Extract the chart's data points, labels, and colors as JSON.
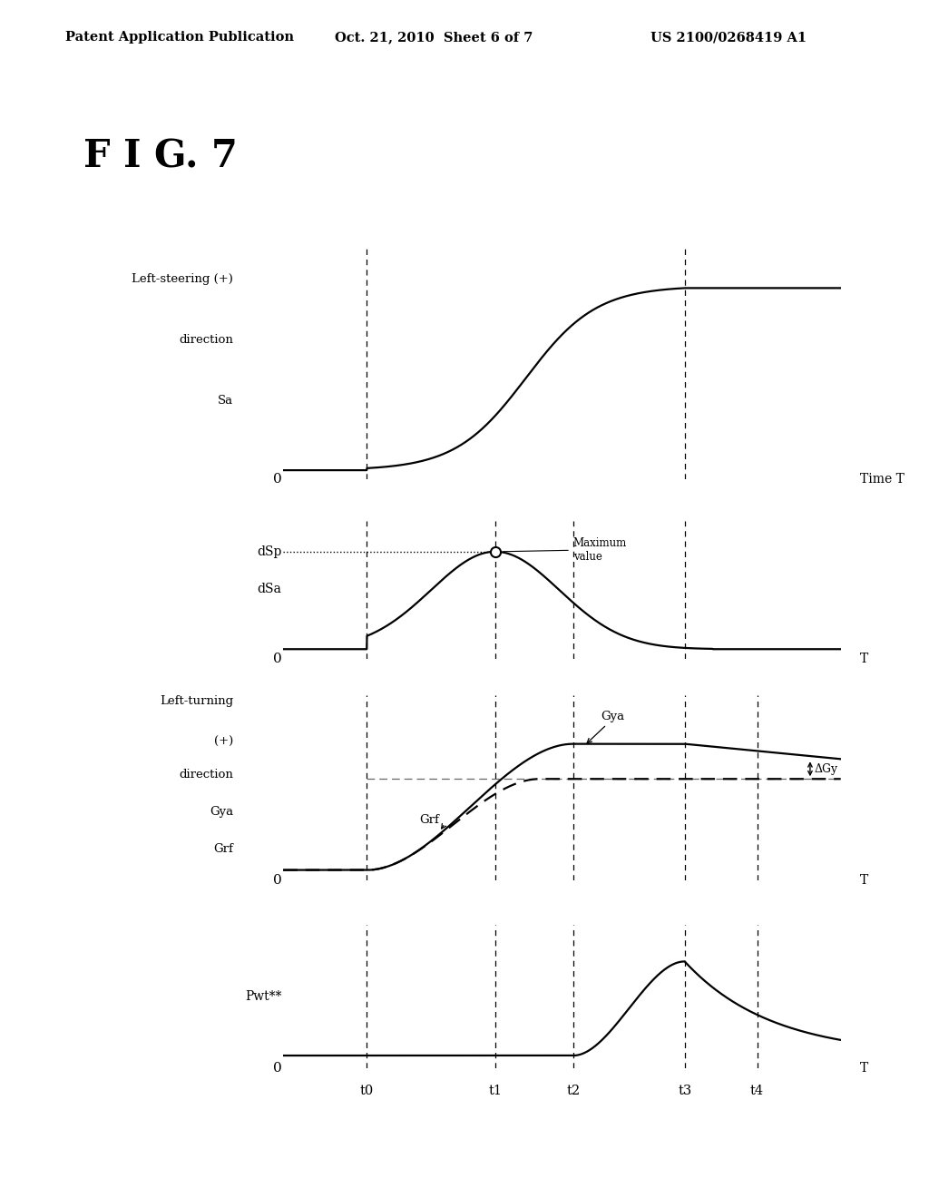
{
  "title": "F I G. 7",
  "header_left": "Patent Application Publication",
  "header_center": "Oct. 21, 2010  Sheet 6 of 7",
  "header_right": "US 2100/0268419 A1",
  "background_color": "#ffffff",
  "subplot1_ylabel_line1": "Left-steering (+)",
  "subplot1_ylabel_line2": "direction",
  "subplot1_ylabel_line3": "Sa",
  "subplot2_dsp_label": "dSp",
  "subplot2_dsa_label": "dSa",
  "subplot3_ylabel_line1": "Left-turning",
  "subplot3_ylabel_line2": "(+)",
  "subplot3_ylabel_line3": "direction",
  "subplot3_ylabel_line4": "Gya",
  "subplot3_ylabel_line5": "Grf",
  "subplot4_ylabel": "Pwt**",
  "time_label": "Time T",
  "t_ticks": [
    "t0",
    "t1",
    "t2",
    "t3",
    "t4"
  ],
  "t_values": [
    0.15,
    0.38,
    0.52,
    0.72,
    0.85
  ],
  "maximum_value_label": "Maximum\nvalue",
  "delta_gy_label": "ΔGy",
  "gya_label": "Gya",
  "grf_label": "Grf"
}
